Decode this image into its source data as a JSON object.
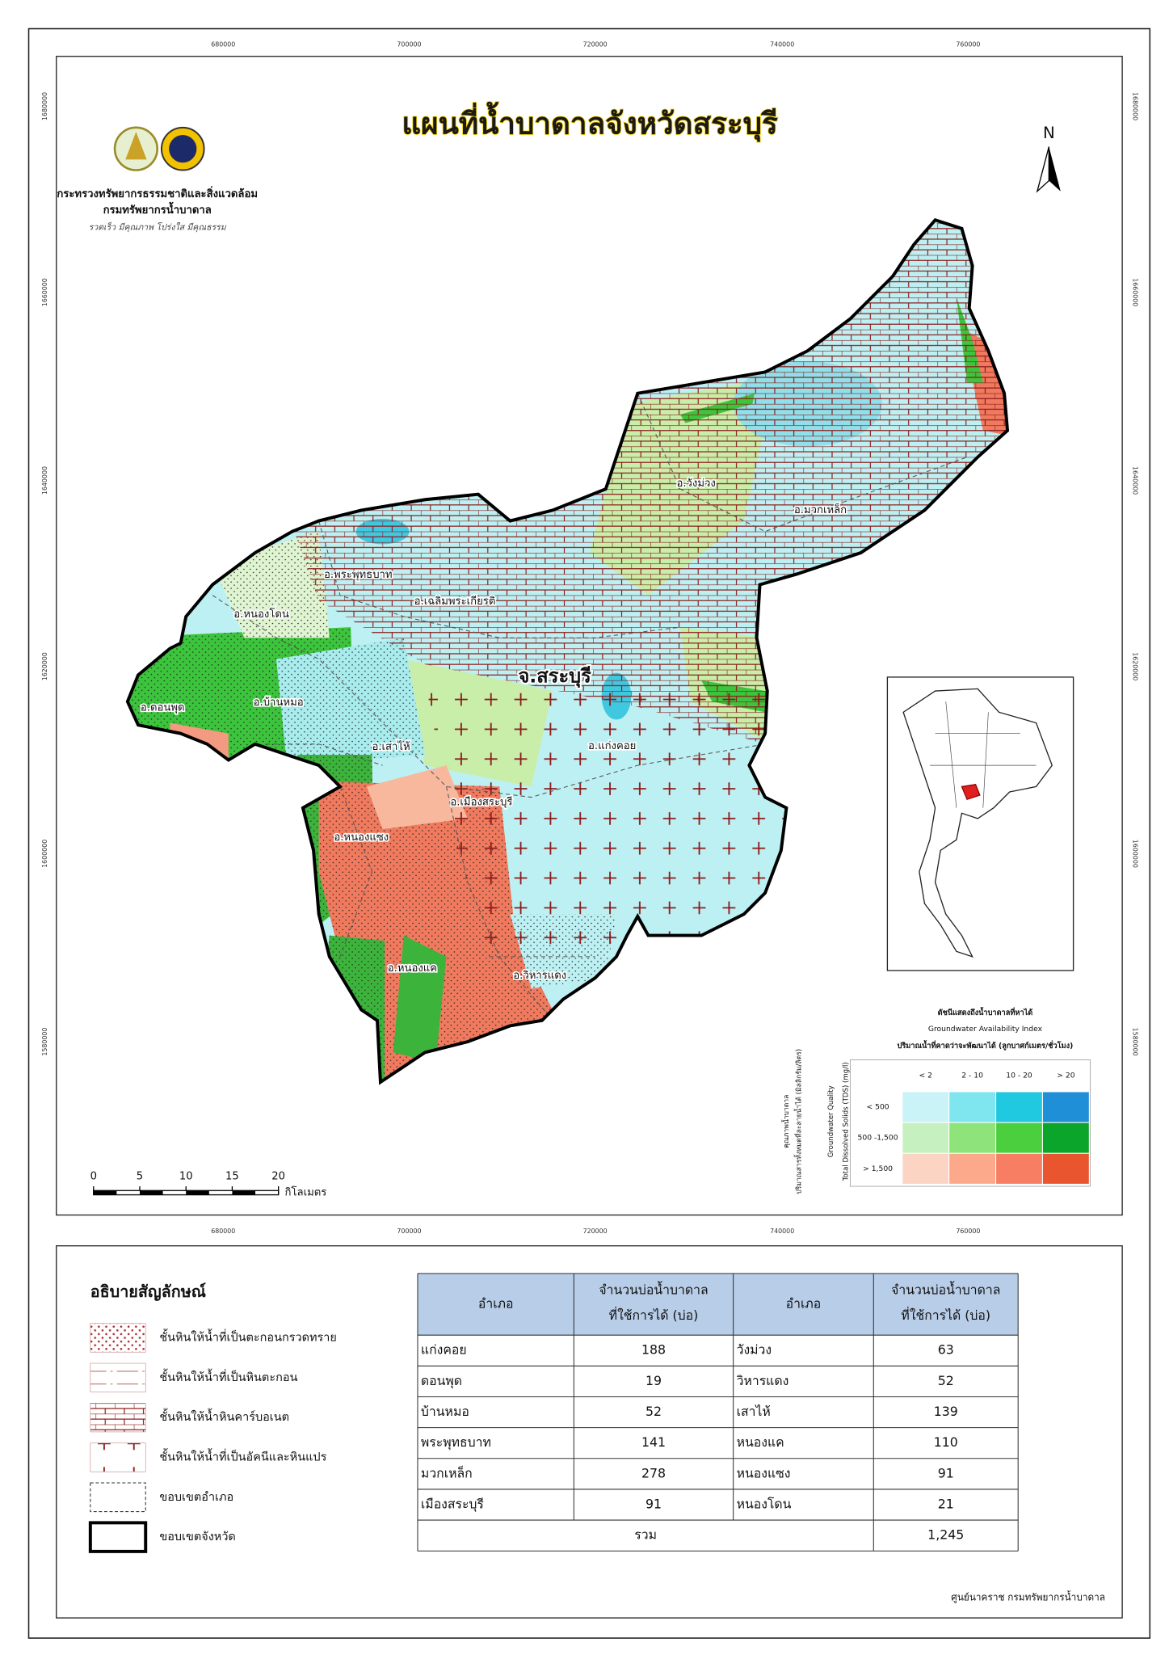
{
  "title": "แผนที่น้ำบาดาลจังหวัดสระบุรี",
  "agency": {
    "ministry": "กระทรวงทรัพยากรธรรมชาติและสิ่งแวดล้อม",
    "department": "กรมทรัพยากรน้ำบาดาล",
    "slogan": "รวดเร็ว มีคุณภาพ โปร่งใส มีคุณธรรม"
  },
  "north": "N",
  "grid": {
    "eastings": [
      "680000",
      "700000",
      "720000",
      "740000",
      "760000"
    ],
    "northings": [
      "1680000",
      "1660000",
      "1640000",
      "1620000",
      "1600000",
      "1580000"
    ]
  },
  "province_label": "จ.สระบุรี",
  "districts": [
    "อ.วังม่วง",
    "อ.มวกเหล็ก",
    "อ.พระพุทธบาท",
    "อ.เฉลิมพระเกียรติ",
    "อ.หนองโดน",
    "อ.ดอนพุด",
    "อ.บ้านหมอ",
    "อ.แก่งคอย",
    "อ.เสาไห้",
    "อ.เมืองสระบุรี",
    "อ.หนองแซง",
    "อ.หนองแค",
    "อ.วิหารแดง"
  ],
  "scale_bar": {
    "ticks": [
      "0",
      "5",
      "10",
      "15",
      "20"
    ],
    "unit": "กิโลเมตร"
  },
  "index_matrix": {
    "title": "ดัชนีแสดงถึงน้ำบาดาลที่หาได้",
    "title_en": "Groundwater Availability Index",
    "yield_label": "ปริมาณน้ำที่คาดว่าจะพัฒนาได้ (ลูกบาศก์เมตร/ชั่วโมง)",
    "columns": [
      "< 2",
      "2 - 10",
      "10 - 20",
      "> 20"
    ],
    "rows": [
      "< 500",
      "500 -1,500",
      "> 1,500"
    ],
    "quality_th": "คุณภาพน้ำบาดาล",
    "quality_th_sub": "ปริมาณสารทั้งหมดที่ละลายน้ำได้ (มิลลิกรัม/ลิตร)",
    "quality_en": "Groundwater Quality",
    "tds_en": "Total Dissolved Solids (TDS) (mg/l)"
  },
  "legend": {
    "title": "อธิบายสัญลักษณ์",
    "items": [
      "ชั้นหินให้น้ำที่เป็นตะกอนกรวดทราย",
      "ชั้นหินให้น้ำที่เป็นหินตะกอน",
      "ชั้นหินให้น้ำหินคาร์บอเนต",
      "ชั้นหินให้น้ำที่เป็นอัคนีและหินแปร",
      "ขอบเขตอำเภอ",
      "ขอบเขตจังหวัด"
    ]
  },
  "table": {
    "headers": [
      [
        "อำเภอ"
      ],
      [
        "จำนวนบ่อน้ำบาดาล",
        "ที่ใช้การได้ (บ่อ)"
      ],
      [
        "อำเภอ"
      ],
      [
        "จำนวนบ่อน้ำบาดาล",
        "ที่ใช้การได้ (บ่อ)"
      ]
    ],
    "rows": [
      [
        "แก่งคอย",
        "188",
        "วังม่วง",
        "63"
      ],
      [
        "ดอนพุด",
        "19",
        "วิหารแดง",
        "52"
      ],
      [
        "บ้านหมอ",
        "52",
        "เสาไห้",
        "139"
      ],
      [
        "พระพุทธบาท",
        "141",
        "หนองแค",
        "110"
      ],
      [
        "มวกเหล็ก",
        "278",
        "หนองแซง",
        "91"
      ],
      [
        "เมืองสระบุรี",
        "91",
        "หนองโดน",
        "21"
      ]
    ],
    "total": {
      "label": "รวม",
      "value": "1,245"
    }
  },
  "source": "ศูนย์นาคราช กรมทรัพยากรน้ำบาดาล"
}
